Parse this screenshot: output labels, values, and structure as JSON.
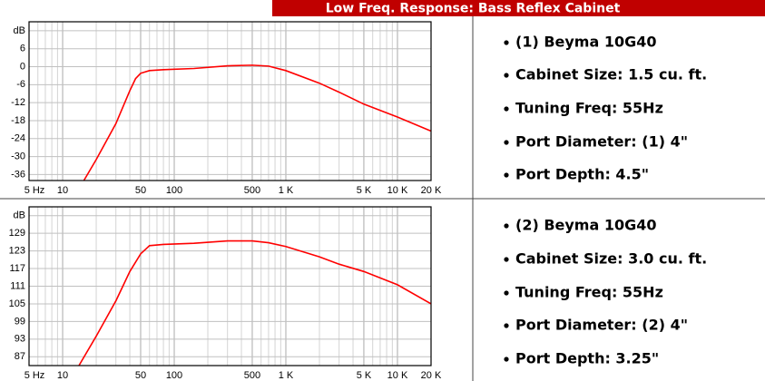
{
  "header": {
    "title": "Low Freq. Response: Bass Reflex Cabinet"
  },
  "chart_data": [
    {
      "type": "line",
      "log_x": true,
      "grid": true,
      "xlim": [
        5,
        20000
      ],
      "ylim": [
        -38,
        15
      ],
      "xticks": [
        {
          "value": 5,
          "label": "5 Hz"
        },
        10,
        50,
        100,
        500,
        {
          "value": 1000,
          "label": "1 K"
        },
        {
          "value": 5000,
          "label": "5 K"
        },
        {
          "value": 10000,
          "label": "10 K"
        },
        {
          "value": 20000,
          "label": "20 K"
        }
      ],
      "xgrid_minor": [
        6,
        7,
        8,
        9,
        20,
        30,
        40,
        60,
        70,
        80,
        90,
        200,
        300,
        400,
        600,
        700,
        800,
        900,
        2000,
        3000,
        4000,
        6000,
        7000,
        8000,
        9000
      ],
      "yticks": [
        {
          "value": 12,
          "label": "dB"
        },
        6,
        0,
        -6,
        -12,
        -18,
        -24,
        -30,
        -36
      ],
      "x": [
        15.5,
        20,
        30,
        40,
        45,
        50,
        60,
        80,
        150,
        300,
        500,
        700,
        1000,
        2000,
        3000,
        5000,
        10000,
        20000
      ],
      "series": [
        {
          "color": "#ff0000",
          "values": [
            -38,
            -31,
            -19,
            -8,
            -4,
            -2.2,
            -1.3,
            -1,
            -0.6,
            0.3,
            0.5,
            0.2,
            -1.3,
            -5.5,
            -8.5,
            -12.5,
            -16.8,
            -21.5
          ]
        }
      ]
    },
    {
      "type": "line",
      "log_x": true,
      "grid": true,
      "xlim": [
        5,
        20000
      ],
      "ylim": [
        84,
        138
      ],
      "xticks": [
        {
          "value": 5,
          "label": "5 Hz"
        },
        10,
        50,
        100,
        500,
        {
          "value": 1000,
          "label": "1 K"
        },
        {
          "value": 5000,
          "label": "5 K"
        },
        {
          "value": 10000,
          "label": "10 K"
        },
        {
          "value": 20000,
          "label": "20 K"
        }
      ],
      "xgrid_minor": [
        6,
        7,
        8,
        9,
        20,
        30,
        40,
        60,
        70,
        80,
        90,
        200,
        300,
        400,
        600,
        700,
        800,
        900,
        2000,
        3000,
        4000,
        6000,
        7000,
        8000,
        9000
      ],
      "yticks": [
        {
          "value": 135,
          "label": "dB"
        },
        129,
        123,
        117,
        111,
        105,
        99,
        93,
        87
      ],
      "x": [
        14,
        20,
        30,
        40,
        50,
        60,
        80,
        150,
        300,
        500,
        700,
        1000,
        2000,
        3000,
        5000,
        10000,
        20000
      ],
      "series": [
        {
          "color": "#ff0000",
          "values": [
            84,
            94,
            106,
            116,
            122,
            124.8,
            125.2,
            125.6,
            126.4,
            126.4,
            125.8,
            124.5,
            121,
            118.5,
            116,
            111.5,
            105
          ]
        }
      ]
    }
  ],
  "specs": [
    [
      "(1) Beyma 10G40",
      "Cabinet Size: 1.5 cu. ft.",
      "Tuning Freq: 55Hz",
      "Port Diameter: (1) 4\"",
      "Port Depth: 4.5\""
    ],
    [
      "(2) Beyma 10G40",
      "Cabinet Size: 3.0 cu. ft.",
      "Tuning Freq: 55Hz",
      "Port Diameter: (2) 4\"",
      "Port Depth: 3.25\""
    ]
  ]
}
